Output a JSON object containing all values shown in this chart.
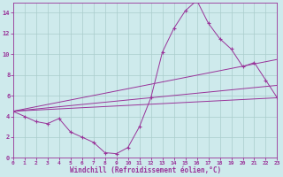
{
  "xlabel": "Windchill (Refroidissement éolien,°C)",
  "bg_color": "#ceeaec",
  "grid_color": "#aacccc",
  "line_color": "#993399",
  "xlim": [
    0,
    23
  ],
  "ylim": [
    0,
    15
  ],
  "xticks": [
    0,
    1,
    2,
    3,
    4,
    5,
    6,
    7,
    8,
    9,
    10,
    11,
    12,
    13,
    14,
    15,
    16,
    17,
    18,
    19,
    20,
    21,
    22,
    23
  ],
  "yticks": [
    0,
    2,
    4,
    6,
    8,
    10,
    12,
    14
  ],
  "series": [
    {
      "x": [
        0,
        1,
        2,
        3,
        4,
        5,
        6,
        7,
        8,
        9,
        10,
        11,
        12,
        13,
        14,
        15,
        16,
        17,
        18,
        19,
        20,
        21,
        22,
        23
      ],
      "y": [
        4.5,
        4.0,
        3.5,
        3.3,
        3.8,
        2.5,
        2.0,
        1.5,
        0.5,
        0.4,
        1.0,
        3.0,
        5.8,
        10.2,
        12.5,
        14.2,
        15.2,
        13.0,
        11.5,
        10.5,
        8.8,
        9.2,
        7.5,
        5.8
      ]
    },
    {
      "x": [
        0,
        23
      ],
      "y": [
        4.5,
        5.8
      ]
    },
    {
      "x": [
        0,
        23
      ],
      "y": [
        4.5,
        9.5
      ]
    },
    {
      "x": [
        0,
        23
      ],
      "y": [
        4.5,
        7.0
      ]
    }
  ]
}
